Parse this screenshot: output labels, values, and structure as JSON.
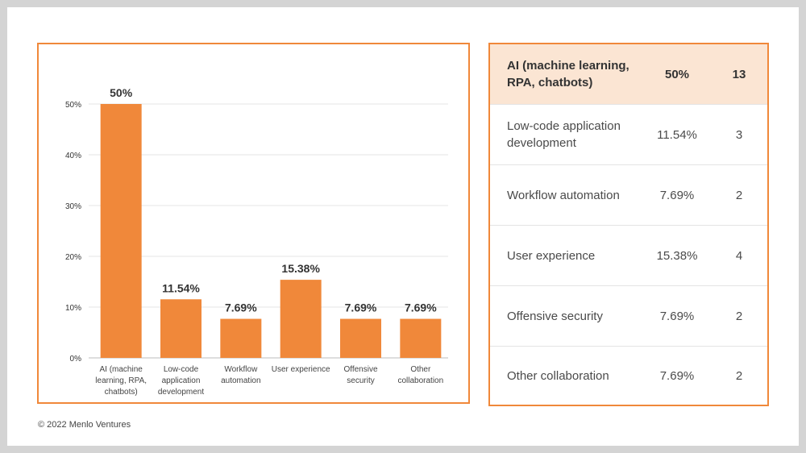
{
  "chart_data": {
    "type": "bar",
    "categories": [
      [
        "AI (machine",
        "learning, RPA,",
        "chatbots)"
      ],
      [
        "Low-code",
        "application",
        "development"
      ],
      [
        "Workflow",
        "automation"
      ],
      [
        "User experience"
      ],
      [
        "Offensive",
        "security"
      ],
      [
        "Other",
        "collaboration"
      ]
    ],
    "values": [
      50,
      11.54,
      7.69,
      15.38,
      7.69,
      7.69
    ],
    "value_labels": [
      "50%",
      "11.54%",
      "7.69%",
      "15.38%",
      "7.69%",
      "7.69%"
    ],
    "yticks": [
      0,
      10,
      20,
      30,
      40,
      50
    ],
    "ytick_labels": [
      "0%",
      "10%",
      "20%",
      "30%",
      "40%",
      "50%"
    ],
    "ylim": [
      0,
      50
    ],
    "grid": true,
    "bar_color": "#f0883a",
    "title": "",
    "xlabel": "",
    "ylabel": ""
  },
  "table": {
    "rows": [
      {
        "name": "AI (machine learning, RPA, chatbots)",
        "pct": "50%",
        "count": "13"
      },
      {
        "name": "Low-code application development",
        "pct": "11.54%",
        "count": "3"
      },
      {
        "name": "Workflow automation",
        "pct": "7.69%",
        "count": "2"
      },
      {
        "name": "User experience",
        "pct": "15.38%",
        "count": "4"
      },
      {
        "name": "Offensive security",
        "pct": "7.69%",
        "count": "2"
      },
      {
        "name": "Other collaboration",
        "pct": "7.69%",
        "count": "2"
      }
    ]
  },
  "footer": {
    "text": "© 2022 Menlo Ventures"
  },
  "colors": {
    "accent": "#f0883a",
    "header_bg": "#fbe5d3"
  }
}
